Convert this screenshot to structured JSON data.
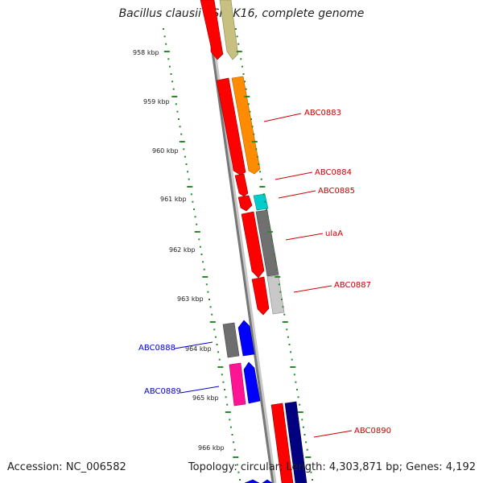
{
  "title": "Bacillus clausii KSM-K16, complete genome",
  "footer": {
    "accession": "Accession: NC_006582",
    "topology": "Topology: circular; Length: 4,303,871 bp; Genes: 4,192"
  },
  "colors": {
    "scale": "#2a8a2a",
    "forward_label": "#cc0000",
    "reverse_label": "#0000cc"
  },
  "scale_ticks": [
    "958 kbp",
    "959 kbp",
    "960 kbp",
    "961 kbp",
    "962 kbp",
    "963 kbp",
    "964 kbp",
    "965 kbp",
    "966 kbp"
  ],
  "gene_labels": [
    {
      "text": "ABC0883",
      "strand": "forward"
    },
    {
      "text": "ABC0884",
      "strand": "forward"
    },
    {
      "text": "ABC0885",
      "strand": "forward"
    },
    {
      "text": "ulaA",
      "strand": "forward"
    },
    {
      "text": "ABC0887",
      "strand": "forward"
    },
    {
      "text": "ABC0888",
      "strand": "reverse"
    },
    {
      "text": "ABC0889",
      "strand": "reverse"
    },
    {
      "text": "ABC0890",
      "strand": "forward"
    }
  ]
}
